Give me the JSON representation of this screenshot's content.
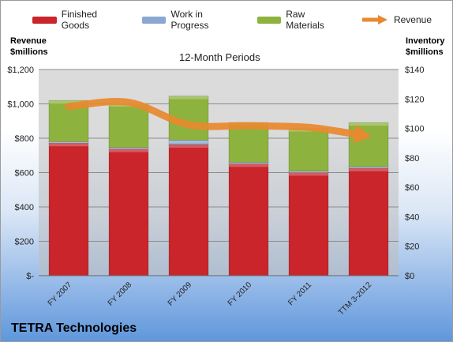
{
  "chart_data": {
    "type": "bar",
    "title": "12-Month Periods",
    "company": "TETRA Technologies",
    "categories": [
      "FY 2007",
      "FY 2008",
      "FY 2009",
      "FY 2010",
      "FY 2011",
      "TTM 3-2012"
    ],
    "left_axis": {
      "label": "Revenue\n$millions",
      "ylim": [
        0,
        1200
      ],
      "ticks": [
        0,
        200,
        400,
        600,
        800,
        1000,
        1200
      ],
      "tick_labels": [
        "$-",
        "$200",
        "$400",
        "$600",
        "$800",
        "$1,000",
        "$1,200"
      ]
    },
    "right_axis": {
      "label": "Inventory\n$millions",
      "ylim": [
        0,
        140
      ],
      "ticks": [
        0,
        20,
        40,
        60,
        80,
        100,
        120,
        140
      ],
      "tick_labels": [
        "$0",
        "$20",
        "$40",
        "$60",
        "$80",
        "$100",
        "$120",
        "$140"
      ]
    },
    "stacked_series": [
      {
        "name": "Finished Goods",
        "axis": "right",
        "color": "#c9252b",
        "values": [
          90,
          86,
          89,
          76,
          70,
          73
        ]
      },
      {
        "name": "Work in Progress",
        "axis": "right",
        "color": "#8aa7d0",
        "values": [
          1,
          1,
          3,
          1,
          1,
          1
        ]
      },
      {
        "name": "Raw Materials",
        "axis": "right",
        "color": "#8db33e",
        "values": [
          28,
          30,
          30,
          27,
          29,
          30
        ]
      }
    ],
    "line_series": {
      "name": "Revenue",
      "axis": "left",
      "color": "#e9892f",
      "values": [
        985,
        1009,
        879,
        873,
        863,
        812
      ]
    },
    "grid": true,
    "legend_position": "top"
  }
}
